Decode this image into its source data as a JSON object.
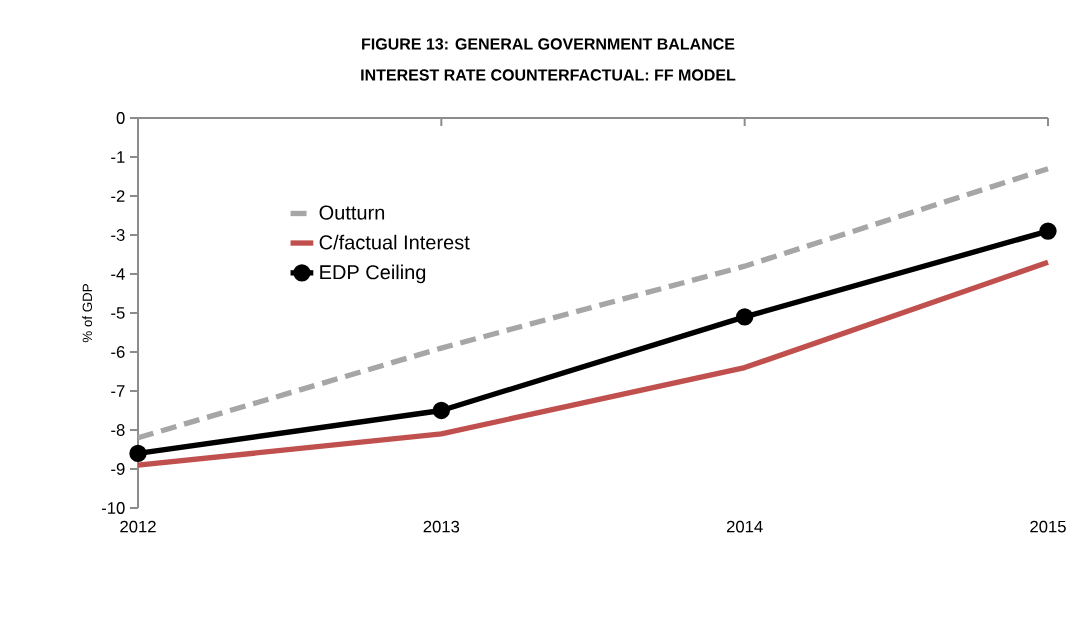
{
  "chart_data": {
    "type": "line",
    "title": "FIGURE 13: GENERAL GOVERNMENT  BALANCE",
    "subtitle": "INTEREST RATE COUNTERFACTUAL: FF MODEL",
    "ylabel": "% of GDP",
    "x": [
      2012,
      2013,
      2014,
      2015
    ],
    "xlim": [
      2012,
      2015
    ],
    "xticks": [
      2012,
      2013,
      2014,
      2015
    ],
    "ylim": [
      -10,
      0
    ],
    "yticks": [
      -10,
      -9,
      -8,
      -7,
      -6,
      -5,
      -4,
      -3,
      -2,
      -1,
      0
    ],
    "grid": false,
    "legend": "top left",
    "series": [
      {
        "name": "Outturn",
        "color": "#a6a6a6",
        "line_style": "dashed",
        "marker": "none",
        "values": [
          -8.2,
          -5.9,
          -3.8,
          -1.3
        ]
      },
      {
        "name": "C/factual Interest",
        "color": "#c0504d",
        "line_style": "solid",
        "marker": "none",
        "values": [
          -8.9,
          -8.1,
          -6.4,
          -3.7
        ]
      },
      {
        "name": "EDP Ceiling",
        "color": "#000000",
        "line_style": "solid",
        "marker": "circle",
        "values": [
          -8.6,
          -7.5,
          -5.1,
          -2.9
        ]
      }
    ]
  }
}
